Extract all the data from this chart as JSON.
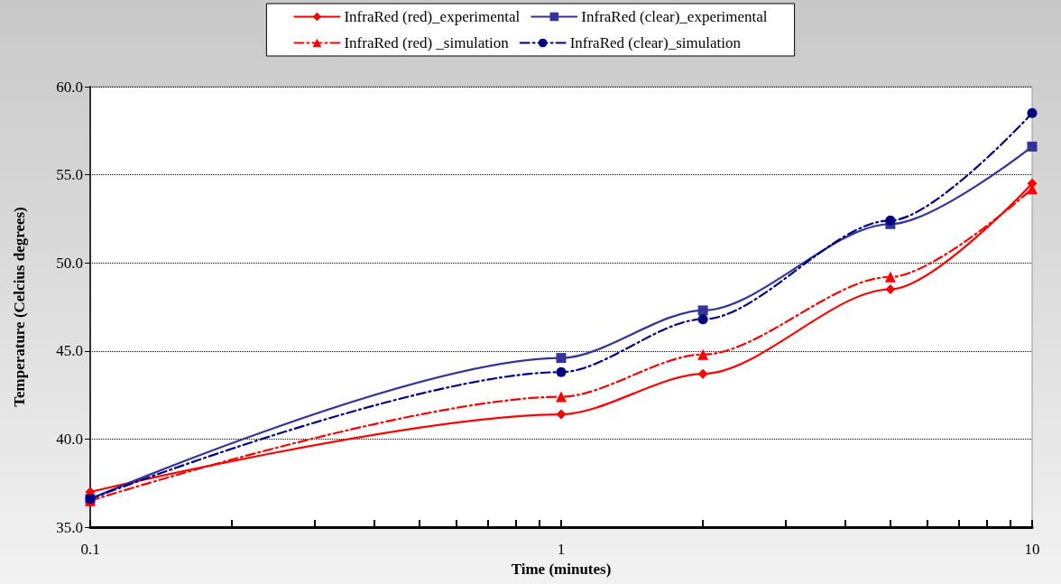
{
  "chart_data": {
    "type": "line",
    "xlabel": "Time (minutes)",
    "ylabel": "Temperature (Celcius degrees)",
    "log": "x",
    "grid": "y",
    "legend": "top",
    "xlim": [
      0.1,
      10
    ],
    "ylim": [
      35,
      60
    ],
    "xticks": [
      0.1,
      {
        "value": 0.2,
        "label": null
      },
      {
        "value": 0.3,
        "label": null
      },
      {
        "value": 0.4,
        "label": null
      },
      {
        "value": 0.5,
        "label": null
      },
      {
        "value": 0.6,
        "label": null
      },
      {
        "value": 0.7,
        "label": null
      },
      {
        "value": 0.8,
        "label": null
      },
      {
        "value": 0.9,
        "label": null
      },
      1,
      {
        "value": 2,
        "label": null
      },
      {
        "value": 3,
        "label": null
      },
      {
        "value": 4,
        "label": null
      },
      {
        "value": 5,
        "label": null
      },
      {
        "value": 6,
        "label": null
      },
      {
        "value": 7,
        "label": null
      },
      {
        "value": 8,
        "label": null
      },
      {
        "value": 9,
        "label": null
      },
      10
    ],
    "yticks": [
      {
        "value": 35,
        "label": "35.0"
      },
      {
        "value": 40,
        "label": "40.0"
      },
      {
        "value": 45,
        "label": "45.0"
      },
      {
        "value": 50,
        "label": "50.0"
      },
      {
        "value": 55,
        "label": "55.0"
      },
      {
        "value": 60,
        "label": "60.0"
      }
    ],
    "x": [
      0.1,
      1,
      2,
      5,
      10
    ],
    "series": [
      {
        "name": "InfraRed (red)_experimental",
        "color": "#ff0000",
        "marker": "diamond",
        "line_style": "solid",
        "values": [
          37.0,
          41.4,
          43.7,
          48.5,
          54.5
        ]
      },
      {
        "name": "InfraRed (clear)_experimental",
        "color": "#333399",
        "marker": "square",
        "line_style": "solid",
        "values": [
          36.6,
          44.6,
          47.3,
          52.2,
          56.6
        ]
      },
      {
        "name": "InfraRed (red) _simulation",
        "color": "#ff0000",
        "marker": "triangle",
        "line_style": "dashed",
        "values": [
          36.5,
          42.4,
          44.8,
          49.2,
          54.2
        ]
      },
      {
        "name": "InfraRed (clear)_simulation",
        "color": "#000080",
        "marker": "circle",
        "line_style": "dashed",
        "values": [
          36.6,
          43.8,
          46.8,
          52.4,
          58.5
        ]
      }
    ]
  }
}
